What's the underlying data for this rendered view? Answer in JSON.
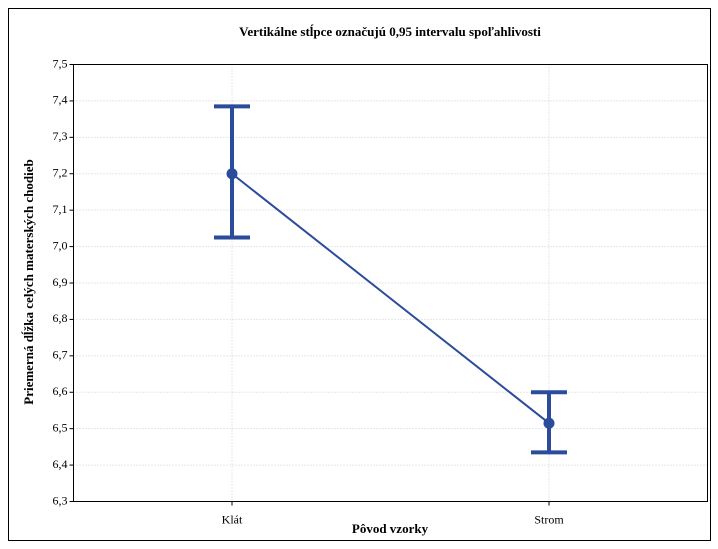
{
  "chart_data": {
    "type": "line",
    "title": "Vertikálne stĺpce označujú 0,95 intervalu spoľahlivosti",
    "x_label": "Pôvod vzorky",
    "y_label": "Priemerná dĺžka celých materských chodieb",
    "categories": [
      "Klát",
      "Strom"
    ],
    "values": [
      7.2,
      6.515
    ],
    "ci_lower": [
      7.025,
      6.435
    ],
    "ci_upper": [
      7.385,
      6.6
    ],
    "color": "#2b4c9b",
    "ylim": [
      6.3,
      7.5
    ],
    "yticks": [
      {
        "value": 6.3,
        "label": "6,3"
      },
      {
        "value": 6.4,
        "label": "6,4"
      },
      {
        "value": 6.5,
        "label": "6,5"
      },
      {
        "value": 6.6,
        "label": "6,6"
      },
      {
        "value": 6.7,
        "label": "6,7"
      },
      {
        "value": 6.8,
        "label": "6,8"
      },
      {
        "value": 6.9,
        "label": "6,9"
      },
      {
        "value": 7.0,
        "label": "7,0"
      },
      {
        "value": 7.1,
        "label": "7,1"
      },
      {
        "value": 7.2,
        "label": "7,2"
      },
      {
        "value": 7.3,
        "label": "7,3"
      },
      {
        "value": 7.4,
        "label": "7,4"
      },
      {
        "value": 7.5,
        "label": "7,5"
      }
    ],
    "grid": true
  }
}
